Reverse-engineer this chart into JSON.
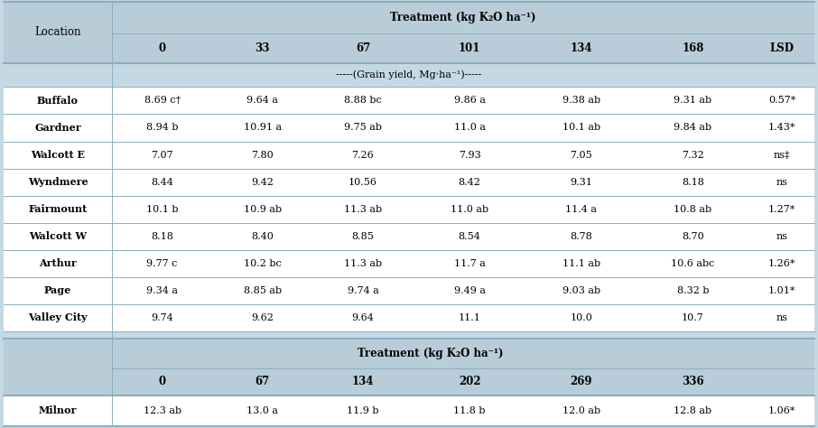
{
  "bg_color": "#c5d9e4",
  "header_bg": "#b8cdd8",
  "white_bg": "#ffffff",
  "section1": {
    "col_headers": [
      "0",
      "33",
      "67",
      "101",
      "134",
      "168",
      "LSD"
    ],
    "subtitle": "-----(Grain yield, Mg·ha⁻¹)-----",
    "rows": [
      [
        "Buffalo",
        "8.69 c†",
        "9.64 a",
        "8.88 bc",
        "9.86 a",
        "9.38 ab",
        "9.31 ab",
        "0.57*"
      ],
      [
        "Gardner",
        "8.94 b",
        "10.91 a",
        "9.75 ab",
        "11.0 a",
        "10.1 ab",
        "9.84 ab",
        "1.43*"
      ],
      [
        "Walcott E",
        "7.07",
        "7.80",
        "7.26",
        "7.93",
        "7.05",
        "7.32",
        "ns‡"
      ],
      [
        "Wyndmere",
        "8.44",
        "9.42",
        "10.56",
        "8.42",
        "9.31",
        "8.18",
        "ns"
      ],
      [
        "Fairmount",
        "10.1 b",
        "10.9 ab",
        "11.3 ab",
        "11.0 ab",
        "11.4 a",
        "10.8 ab",
        "1.27*"
      ],
      [
        "Walcott W",
        "8.18",
        "8.40",
        "8.85",
        "8.54",
        "8.78",
        "8.70",
        "ns"
      ],
      [
        "Arthur",
        "9.77 c",
        "10.2 bc",
        "11.3 ab",
        "11.7 a",
        "11.1 ab",
        "10.6 abc",
        "1.26*"
      ],
      [
        "Page",
        "9.34 a",
        "8.85 ab",
        "9.74 a",
        "9.49 a",
        "9.03 ab",
        "8.32 b",
        "1.01*"
      ],
      [
        "Valley City",
        "9.74",
        "9.62",
        "9.64",
        "11.1",
        "10.0",
        "10.7",
        "ns"
      ]
    ]
  },
  "section2": {
    "col_headers": [
      "0",
      "67",
      "134",
      "202",
      "269",
      "336"
    ],
    "rows": [
      [
        "Milnor",
        "12.3 ab",
        "13.0 a",
        "11.9 b",
        "11.8 b",
        "12.0 ab",
        "12.8 ab",
        "1.06*"
      ]
    ]
  },
  "line_color": "#8bafc0",
  "treatment_label": "Treatment (kg K₂O ha⁻¹)"
}
